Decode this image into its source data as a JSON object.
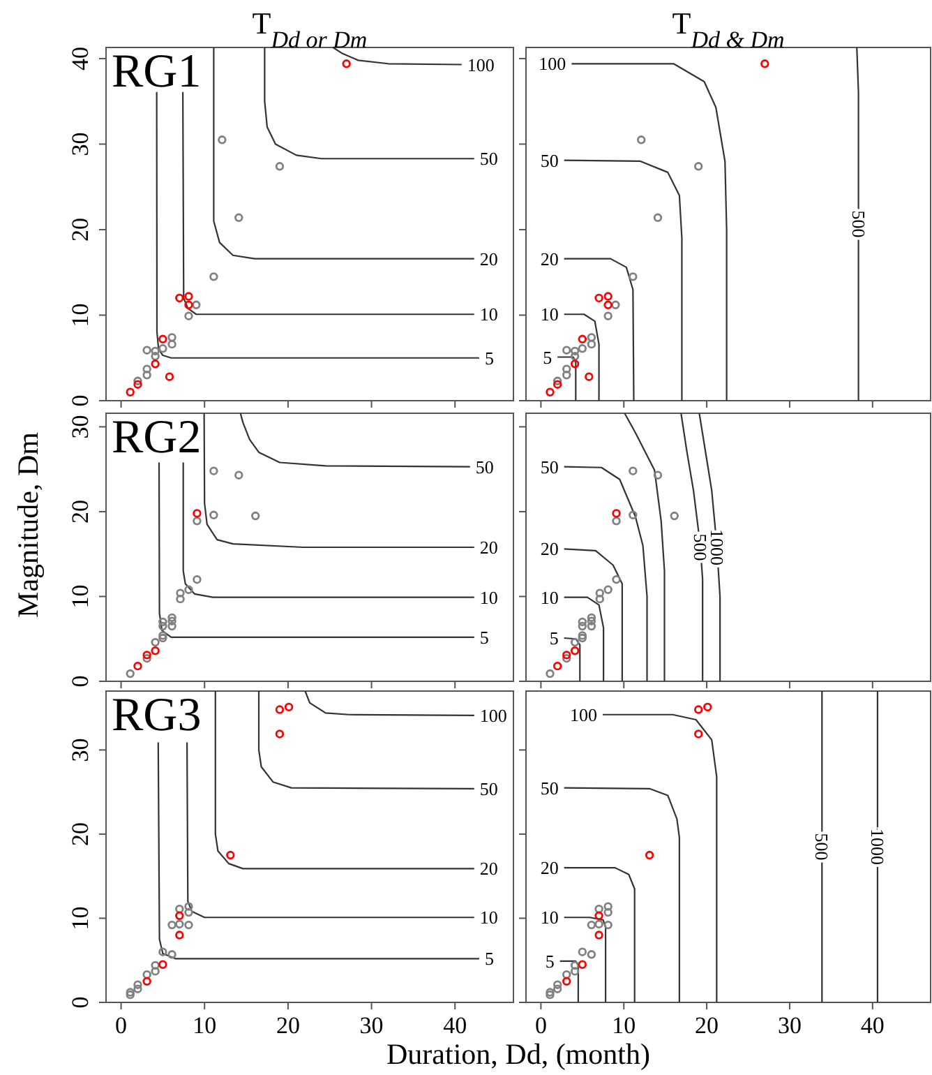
{
  "chart_data": [
    {
      "type": "line",
      "title": "T$_{Dd or Dm}$",
      "annotations": [
        "RG1"
      ],
      "xlim": [
        -1.8,
        47
      ],
      "ylim": [
        0,
        41.3
      ],
      "xticks": [
        0,
        10,
        20,
        30,
        40
      ],
      "yticks": [
        0,
        10,
        20,
        30,
        40
      ],
      "tick_labels": "y",
      "series": [
        {
          "name": "5",
          "color": "#333333",
          "x": [
            42.9,
            6,
            5,
            4.5,
            4.3,
            4.27
          ],
          "values": [
            5.0,
            5.0,
            5.3,
            6,
            8,
            36.1
          ]
        },
        {
          "name": "10",
          "color": "#333333",
          "x": [
            42.3,
            9,
            8,
            7.5,
            7.4
          ],
          "values": [
            10.1,
            10.1,
            10.8,
            12,
            36.1
          ]
        },
        {
          "name": "20",
          "color": "#333333",
          "x": [
            42.3,
            16,
            13.4,
            11.8,
            11.1,
            11.1
          ],
          "values": [
            16.6,
            16.6,
            17.0,
            18.5,
            21,
            41.3
          ]
        },
        {
          "name": "50",
          "color": "#333333",
          "x": [
            42.3,
            24,
            21,
            18.5,
            17.5,
            17.2,
            17.2
          ],
          "values": [
            28.3,
            28.3,
            28.7,
            30,
            32,
            35,
            41.3
          ]
        },
        {
          "name": "100",
          "color": "#333333",
          "x": [
            40.8,
            32,
            28.4,
            26.5,
            25.4
          ],
          "values": [
            39.3,
            39.4,
            39.8,
            40.6,
            41.3
          ]
        },
        {
          "type": "scatter",
          "marker": "circle",
          "color": "#808080",
          "x": [
            12.1,
            19.0,
            14.1,
            11.1,
            9.0,
            8.1,
            6.1,
            6.1,
            5.0,
            3.1,
            4.1,
            4.1,
            3.1,
            3.1,
            2.0
          ],
          "values": [
            30.5,
            27.4,
            21.4,
            14.5,
            11.2,
            9.9,
            7.4,
            6.6,
            6.1,
            5.9,
            5.8,
            5.2,
            3.7,
            3.0,
            2.3
          ]
        },
        {
          "type": "scatter",
          "marker": "circle",
          "color": "#ff0000",
          "x": [
            27.0,
            7.0,
            8.1,
            8.1,
            5.0,
            4.1,
            5.8,
            2.0,
            1.1
          ],
          "values": [
            39.4,
            12.0,
            12.2,
            11.2,
            7.2,
            4.3,
            2.8,
            1.9,
            1.0
          ]
        }
      ]
    },
    {
      "type": "line",
      "title": "T$_{Dd & Dm}$",
      "xlim": [
        -1.8,
        47
      ],
      "ylim": [
        0,
        41.3
      ],
      "xticks": [
        0,
        10,
        20,
        30,
        40
      ],
      "yticks": [
        0,
        10,
        20,
        30,
        40
      ],
      "tick_labels": false,
      "series": [
        {
          "name": "100",
          "color": "#333333",
          "x": [
            3.7,
            16,
            19.7,
            21.1,
            22.2,
            22.4,
            22.4
          ],
          "values": [
            39.4,
            39.4,
            37.3,
            34.3,
            28,
            20,
            0
          ]
        },
        {
          "name": "50",
          "color": "#333333",
          "x": [
            2.8,
            12,
            15.3,
            16.7,
            17,
            17
          ],
          "values": [
            28.1,
            28.0,
            26.7,
            24,
            19,
            0
          ]
        },
        {
          "name": "20",
          "color": "#333333",
          "x": [
            2.8,
            8.4,
            10.3,
            11.1,
            11.2
          ],
          "values": [
            16.6,
            16.6,
            15.6,
            13,
            0
          ]
        },
        {
          "name": "10",
          "color": "#333333",
          "x": [
            2.8,
            5.2,
            6.5,
            7.0,
            7.0
          ],
          "values": [
            10.1,
            10.1,
            9.3,
            6.6,
            0
          ]
        },
        {
          "name": "5",
          "color": "#333333",
          "x": [
            2.0,
            3.9,
            4.2,
            4.2
          ],
          "values": [
            5.1,
            5.1,
            4.5,
            0
          ]
        },
        {
          "name": "500",
          "color": "#333333",
          "x": [
            38.3,
            38.3,
            38.1
          ],
          "values": [
            0,
            36,
            41.3
          ]
        },
        {
          "type": "scatter",
          "marker": "circle",
          "color": "#808080",
          "x": [
            12.1,
            19.0,
            14.1,
            11.1,
            9.0,
            8.1,
            6.1,
            6.1,
            5.0,
            3.1,
            4.1,
            4.1,
            3.1,
            3.1,
            2.0
          ],
          "values": [
            30.5,
            27.4,
            21.4,
            14.5,
            11.2,
            9.9,
            7.4,
            6.6,
            6.1,
            5.9,
            5.8,
            5.2,
            3.7,
            3.0,
            2.3
          ]
        },
        {
          "type": "scatter",
          "marker": "circle",
          "color": "#ff0000",
          "x": [
            27.0,
            7.0,
            8.1,
            8.1,
            5.0,
            4.1,
            5.8,
            2.0,
            1.1
          ],
          "values": [
            39.4,
            12.0,
            12.2,
            11.2,
            7.2,
            4.3,
            2.8,
            1.9,
            1.0
          ]
        }
      ]
    },
    {
      "type": "line",
      "ylabel": "Magnitude, Dm",
      "annotations": [
        "RG2"
      ],
      "xlim": [
        -1.8,
        47
      ],
      "ylim": [
        0,
        31.6
      ],
      "xticks": [
        0,
        10,
        20,
        30,
        40
      ],
      "yticks": [
        0,
        10,
        20,
        30
      ],
      "tick_labels": "y",
      "series": [
        {
          "name": "5",
          "color": "#333333",
          "x": [
            42.3,
            6,
            4.9,
            4.6,
            4.55
          ],
          "values": [
            5.2,
            5.2,
            6,
            8,
            25.8
          ]
        },
        {
          "name": "10",
          "color": "#333333",
          "x": [
            42.3,
            11,
            8.8,
            7.7,
            7.45,
            7.45
          ],
          "values": [
            9.9,
            9.9,
            10.3,
            11.5,
            13,
            25.8
          ]
        },
        {
          "name": "20",
          "color": "#333333",
          "x": [
            42.3,
            21.8,
            13.4,
            11.5,
            10.3,
            10,
            9.95
          ],
          "values": [
            15.8,
            15.8,
            16.2,
            16.7,
            18.5,
            21,
            31.6
          ]
        },
        {
          "name": "50",
          "color": "#333333",
          "x": [
            41.8,
            24.5,
            19,
            16.5,
            15.4,
            14.6,
            14.3
          ],
          "values": [
            25.3,
            25.4,
            25.8,
            27,
            28.5,
            30.5,
            31.6
          ]
        },
        {
          "type": "scatter",
          "marker": "circle",
          "color": "#808080",
          "x": [
            11.1,
            14.1,
            11.1,
            16.1,
            9.1,
            9.1,
            8.1,
            7.1,
            7.1,
            6.1,
            6.1,
            6.1,
            5.0,
            5.0,
            5.0,
            5.0,
            4.1,
            3.1,
            1.1
          ],
          "values": [
            24.8,
            24.3,
            19.6,
            19.5,
            18.9,
            12.0,
            10.8,
            10.4,
            9.7,
            7.5,
            7.1,
            6.5,
            7.0,
            6.5,
            5.4,
            5.1,
            4.6,
            2.7,
            0.9
          ]
        },
        {
          "type": "scatter",
          "marker": "circle",
          "color": "#ff0000",
          "x": [
            9.1,
            3.1,
            4.1,
            2.0
          ],
          "values": [
            19.8,
            3.1,
            3.6,
            1.8
          ]
        }
      ]
    },
    {
      "type": "line",
      "xlim": [
        -1.8,
        47
      ],
      "ylim": [
        0,
        31.6
      ],
      "xticks": [
        0,
        10,
        20,
        30,
        40
      ],
      "yticks": [
        0,
        10,
        20,
        30
      ],
      "tick_labels": false,
      "series": [
        {
          "name": "50",
          "color": "#333333",
          "x": [
            2.8,
            7.3,
            9.5,
            11.4,
            12.3,
            12.8,
            12.8
          ],
          "values": [
            25.3,
            25.2,
            23.8,
            19.4,
            16,
            10,
            0
          ]
        },
        {
          "name": "20",
          "color": "#333333",
          "x": [
            2.8,
            6.6,
            8.7,
            9.8,
            9.8
          ],
          "values": [
            15.6,
            15.4,
            13.7,
            11.5,
            0
          ]
        },
        {
          "name": "10",
          "color": "#333333",
          "x": [
            2.8,
            5.6,
            7.0,
            7.55,
            7.55
          ],
          "values": [
            9.9,
            9.9,
            9.0,
            6.3,
            0
          ]
        },
        {
          "name": "5",
          "color": "#333333",
          "x": [
            2.8,
            4.2,
            4.7,
            4.7
          ],
          "values": [
            5.1,
            5.0,
            4.3,
            0
          ]
        },
        {
          "color": "#333333",
          "x": [
            10.1,
            11.4,
            13.7,
            14.5,
            14.9,
            14.9
          ],
          "values": [
            31.6,
            29.3,
            24.9,
            18.9,
            13,
            0
          ]
        },
        {
          "name": "500",
          "color": "#333333",
          "x": [
            19.5,
            19.5,
            19.2,
            18.4,
            17.6,
            16.9
          ],
          "values": [
            0,
            12,
            16.2,
            22.5,
            27.1,
            31.6
          ]
        },
        {
          "name": "1000",
          "color": "#333333",
          "x": [
            21.6,
            21.6,
            21.2,
            20.6,
            19.1
          ],
          "values": [
            0,
            10,
            16.2,
            22.5,
            31.6
          ]
        },
        {
          "type": "scatter",
          "marker": "circle",
          "color": "#808080",
          "x": [
            11.1,
            14.1,
            11.1,
            16.1,
            9.1,
            9.1,
            8.1,
            7.1,
            7.1,
            6.1,
            6.1,
            6.1,
            5.0,
            5.0,
            5.0,
            5.0,
            4.1,
            3.1,
            1.1
          ],
          "values": [
            24.8,
            24.3,
            19.6,
            19.5,
            18.9,
            12.0,
            10.8,
            10.4,
            9.7,
            7.5,
            7.1,
            6.5,
            7.0,
            6.5,
            5.4,
            5.1,
            4.6,
            2.7,
            0.9
          ]
        },
        {
          "type": "scatter",
          "marker": "circle",
          "color": "#ff0000",
          "x": [
            9.1,
            3.1,
            4.1,
            2.0
          ],
          "values": [
            19.8,
            3.1,
            3.6,
            1.8
          ]
        }
      ]
    },
    {
      "type": "line",
      "xlabel": "Duration, Dd, (month)",
      "annotations": [
        "RG3"
      ],
      "xlim": [
        -1.8,
        47
      ],
      "ylim": [
        0,
        37
      ],
      "xticks": [
        0,
        10,
        20,
        30,
        40
      ],
      "yticks": [
        0,
        10,
        20,
        30
      ],
      "series": [
        {
          "name": "5",
          "color": "#333333",
          "x": [
            42.9,
            6.5,
            5,
            4.6,
            4.45
          ],
          "values": [
            5.2,
            5.2,
            5.8,
            7.5,
            30.9
          ]
        },
        {
          "name": "10",
          "color": "#333333",
          "x": [
            42.3,
            10,
            8.5,
            8,
            7.9
          ],
          "values": [
            10.1,
            10.1,
            10.8,
            12,
            30.9
          ]
        },
        {
          "name": "20",
          "color": "#333333",
          "x": [
            42.3,
            14.6,
            12.9,
            11.6,
            11.3,
            11.3
          ],
          "values": [
            15.9,
            15.9,
            16.5,
            18,
            20,
            37
          ]
        },
        {
          "name": "50",
          "color": "#333333",
          "x": [
            42.3,
            20.4,
            18.2,
            16.8,
            16.5,
            16.5
          ],
          "values": [
            25.4,
            25.5,
            26.2,
            28,
            30,
            37
          ]
        },
        {
          "name": "100",
          "color": "#333333",
          "x": [
            42.3,
            27.3,
            24.5,
            22.6,
            22.05
          ],
          "values": [
            34.1,
            34.2,
            34.4,
            35.6,
            37
          ]
        },
        {
          "type": "scatter",
          "marker": "circle",
          "color": "#808080",
          "x": [
            7.0,
            8.1,
            8.1,
            8.1,
            6.1,
            7.0,
            6.1,
            5.0,
            4.1,
            4.1,
            3.1,
            2.0,
            2.0,
            1.1,
            1.1
          ],
          "values": [
            11.1,
            11.4,
            10.7,
            9.2,
            9.2,
            9.3,
            5.7,
            6.0,
            4.4,
            3.7,
            3.3,
            2.1,
            1.6,
            1.2,
            0.9
          ]
        },
        {
          "type": "scatter",
          "marker": "circle",
          "color": "#ff0000",
          "x": [
            19.0,
            20.1,
            19.0,
            13.1,
            7.0,
            7.0,
            5.0,
            3.1
          ],
          "values": [
            34.8,
            35.1,
            31.9,
            17.5,
            10.3,
            8.0,
            4.5,
            2.5
          ]
        }
      ]
    },
    {
      "type": "line",
      "xlim": [
        -1.8,
        47
      ],
      "ylim": [
        0,
        37
      ],
      "xticks": [
        0,
        10,
        20,
        30,
        40
      ],
      "yticks": [
        0,
        10,
        20,
        30
      ],
      "tick_labels": "x",
      "series": [
        {
          "name": "100",
          "color": "#333333",
          "x": [
            7.45,
            15.9,
            18.7,
            20.6,
            21.2,
            21.2
          ],
          "values": [
            34.2,
            34.2,
            33.6,
            31.2,
            26.8,
            0
          ]
        },
        {
          "name": "50",
          "color": "#333333",
          "x": [
            2.8,
            13.1,
            15.3,
            16.4,
            16.7,
            16.7
          ],
          "values": [
            25.5,
            25.4,
            24.6,
            21.8,
            19.6,
            0
          ]
        },
        {
          "name": "20",
          "color": "#333333",
          "x": [
            2.8,
            8.95,
            10.6,
            11.3,
            11.3
          ],
          "values": [
            16.0,
            16.0,
            15.2,
            13.5,
            0
          ]
        },
        {
          "name": "10",
          "color": "#333333",
          "x": [
            2.8,
            5.9,
            7.5,
            7.8,
            7.8
          ],
          "values": [
            10.1,
            10.1,
            9.8,
            9.0,
            0
          ]
        },
        {
          "name": "5",
          "color": "#333333",
          "x": [
            2.3,
            4.2,
            4.5,
            4.5
          ],
          "values": [
            4.9,
            4.9,
            4.4,
            0
          ]
        },
        {
          "name": "500",
          "color": "#333333",
          "x": [
            33.9,
            33.9
          ],
          "values": [
            0,
            37
          ]
        },
        {
          "name": "1000",
          "color": "#333333",
          "x": [
            40.6,
            40.6
          ],
          "values": [
            0,
            37
          ]
        },
        {
          "type": "scatter",
          "marker": "circle",
          "color": "#808080",
          "x": [
            7.0,
            8.1,
            8.1,
            8.1,
            6.1,
            7.0,
            6.1,
            5.0,
            4.1,
            4.1,
            3.1,
            2.0,
            2.0,
            1.1,
            1.1
          ],
          "values": [
            11.1,
            11.4,
            10.7,
            9.2,
            9.2,
            9.3,
            5.7,
            6.0,
            4.4,
            3.7,
            3.3,
            2.1,
            1.6,
            1.2,
            0.9
          ]
        },
        {
          "type": "scatter",
          "marker": "circle",
          "color": "#ff0000",
          "x": [
            19.0,
            20.1,
            19.0,
            13.1,
            7.0,
            7.0,
            5.0,
            3.1
          ],
          "values": [
            34.8,
            35.1,
            31.9,
            17.5,
            10.3,
            8.0,
            4.5,
            2.5
          ]
        }
      ]
    }
  ]
}
